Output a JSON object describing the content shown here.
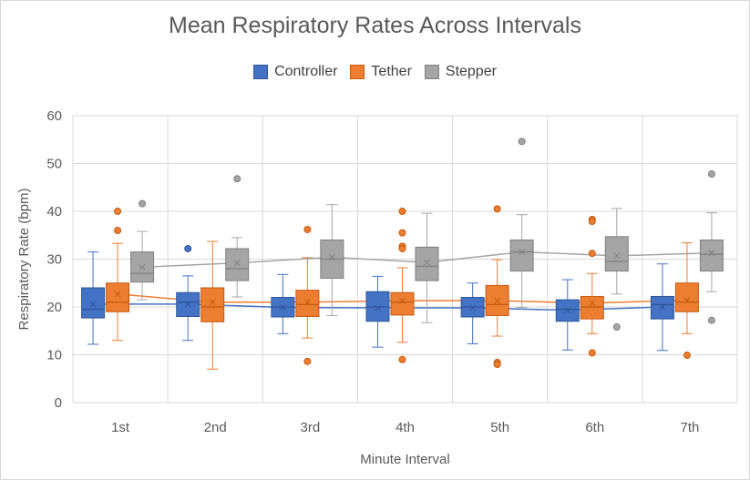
{
  "chart_data": {
    "type": "box",
    "title": "Mean Respiratory Rates Across Intervals",
    "xlabel": "Minute Interval",
    "ylabel": "Respiratory Rate (bpm)",
    "ylim": [
      0,
      60
    ],
    "yticks": [
      "0",
      "10",
      "20",
      "30",
      "40",
      "50",
      "60"
    ],
    "ytick_values": [
      0,
      10,
      20,
      30,
      40,
      50,
      60
    ],
    "grid": "horizontal and vertical",
    "legend": "top-center",
    "categories": [
      "1st",
      "2nd",
      "3rd",
      "4th",
      "5th",
      "6th",
      "7th"
    ],
    "series": [
      {
        "name": "Controller",
        "color": "#4472c4",
        "stroke": "#2f5597",
        "boxes": [
          {
            "min": 12.2,
            "q1": 17.7,
            "median": 19.5,
            "q3": 24.0,
            "max": 31.5,
            "mean": 20.6,
            "outliers": []
          },
          {
            "min": 13.0,
            "q1": 18.0,
            "median": 21.0,
            "q3": 23.0,
            "max": 26.5,
            "mean": 20.6,
            "outliers": [
              32.2
            ]
          },
          {
            "min": 14.4,
            "q1": 17.9,
            "median": 20.0,
            "q3": 22.0,
            "max": 26.8,
            "mean": 19.9,
            "outliers": []
          },
          {
            "min": 11.6,
            "q1": 17.0,
            "median": 20.0,
            "q3": 23.2,
            "max": 26.4,
            "mean": 19.8,
            "outliers": []
          },
          {
            "min": 12.3,
            "q1": 17.9,
            "median": 20.0,
            "q3": 22.0,
            "max": 25.0,
            "mean": 19.8,
            "outliers": []
          },
          {
            "min": 11.0,
            "q1": 17.0,
            "median": 19.5,
            "q3": 21.5,
            "max": 25.7,
            "mean": 19.3,
            "outliers": []
          },
          {
            "min": 10.9,
            "q1": 17.5,
            "median": 20.5,
            "q3": 22.2,
            "max": 29.0,
            "mean": 20.0,
            "outliers": []
          }
        ]
      },
      {
        "name": "Tether",
        "color": "#ed7d31",
        "stroke": "#c55a11",
        "boxes": [
          {
            "min": 13.0,
            "q1": 19.0,
            "median": 21.0,
            "q3": 25.0,
            "max": 33.3,
            "mean": 22.7,
            "outliers": [
              40.0,
              36.0
            ]
          },
          {
            "min": 7.0,
            "q1": 16.9,
            "median": 20.0,
            "q3": 24.0,
            "max": 33.7,
            "mean": 21.0,
            "outliers": []
          },
          {
            "min": 13.5,
            "q1": 18.0,
            "median": 20.5,
            "q3": 23.5,
            "max": 30.3,
            "mean": 21.0,
            "outliers": [
              36.2,
              8.6
            ]
          },
          {
            "min": 12.6,
            "q1": 18.3,
            "median": 21.0,
            "q3": 23.0,
            "max": 28.2,
            "mean": 21.3,
            "outliers": [
              40.0,
              35.5,
              32.7,
              32.2,
              9.0
            ]
          },
          {
            "min": 13.9,
            "q1": 18.2,
            "median": 20.5,
            "q3": 24.5,
            "max": 29.9,
            "mean": 21.3,
            "outliers": [
              40.5,
              8.4,
              8.0
            ]
          },
          {
            "min": 14.4,
            "q1": 17.5,
            "median": 20.0,
            "q3": 22.2,
            "max": 27.0,
            "mean": 20.8,
            "outliers": [
              38.3,
              37.9,
              31.2,
              10.4
            ]
          },
          {
            "min": 14.4,
            "q1": 19.0,
            "median": 21.0,
            "q3": 25.0,
            "max": 33.4,
            "mean": 21.4,
            "outliers": [
              9.9
            ]
          }
        ]
      },
      {
        "name": "Stepper",
        "color": "#a5a5a5",
        "stroke": "#7f7f7f",
        "boxes": [
          {
            "min": 21.5,
            "q1": 25.2,
            "median": 27.0,
            "q3": 31.5,
            "max": 35.8,
            "mean": 28.3,
            "outliers": [
              41.6
            ]
          },
          {
            "min": 22.1,
            "q1": 25.5,
            "median": 28.0,
            "q3": 32.2,
            "max": 34.5,
            "mean": 29.2,
            "outliers": [
              46.8
            ]
          },
          {
            "min": 18.2,
            "q1": 26.0,
            "median": 30.0,
            "q3": 34.0,
            "max": 41.4,
            "mean": 30.4,
            "outliers": []
          },
          {
            "min": 16.7,
            "q1": 25.5,
            "median": 28.5,
            "q3": 32.5,
            "max": 39.6,
            "mean": 29.3,
            "outliers": []
          },
          {
            "min": 19.9,
            "q1": 27.5,
            "median": 31.5,
            "q3": 34.0,
            "max": 39.3,
            "mean": 31.5,
            "outliers": [
              54.6
            ]
          },
          {
            "min": 22.7,
            "q1": 27.5,
            "median": 29.5,
            "q3": 34.7,
            "max": 40.6,
            "mean": 30.7,
            "outliers": [
              15.8
            ]
          },
          {
            "min": 23.2,
            "q1": 27.5,
            "median": 31.0,
            "q3": 34.0,
            "max": 39.7,
            "mean": 31.3,
            "outliers": [
              47.8,
              17.2
            ]
          }
        ]
      }
    ]
  }
}
